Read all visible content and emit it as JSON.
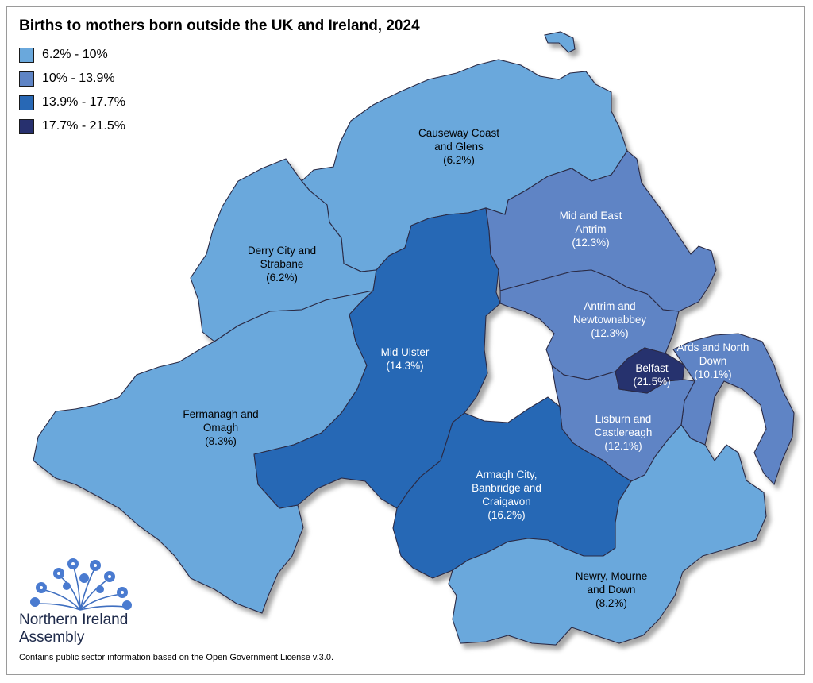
{
  "title": "Births to mothers born outside the UK and Ireland, 2024",
  "legend": [
    {
      "label": "6.2% - 10%",
      "color": "#6aa8dc"
    },
    {
      "label": "10% - 13.9%",
      "color": "#5e84c5"
    },
    {
      "label": "13.9% - 17.7%",
      "color": "#2868b5"
    },
    {
      "label": "17.7% - 21.5%",
      "color": "#27306e"
    }
  ],
  "regions": [
    {
      "id": "causeway",
      "name_lines": [
        "Causeway Coast",
        "and Glens"
      ],
      "value": "(6.2%)",
      "color": "#6aa8dc"
    },
    {
      "id": "derry",
      "name_lines": [
        "Derry City and",
        "Strabane"
      ],
      "value": "(6.2%)",
      "color": "#6aa8dc"
    },
    {
      "id": "fermanagh",
      "name_lines": [
        "Fermanagh and",
        "Omagh"
      ],
      "value": "(8.3%)",
      "color": "#6aa8dc"
    },
    {
      "id": "midulster",
      "name_lines": [
        "Mid Ulster"
      ],
      "value": "(14.3%)",
      "color": "#2868b5"
    },
    {
      "id": "abc",
      "name_lines": [
        "Armagh City,",
        "Banbridge and",
        "Craigavon"
      ],
      "value": "(16.2%)",
      "color": "#2868b5"
    },
    {
      "id": "newry",
      "name_lines": [
        "Newry, Mourne",
        "and Down"
      ],
      "value": "(8.2%)",
      "color": "#6aa8dc"
    },
    {
      "id": "midantrim",
      "name_lines": [
        "Mid and East",
        "Antrim"
      ],
      "value": "(12.3%)",
      "color": "#5e84c5"
    },
    {
      "id": "antrimnewtown",
      "name_lines": [
        "Antrim and",
        "Newtownabbey"
      ],
      "value": "(12.3%)",
      "color": "#5e84c5"
    },
    {
      "id": "belfast",
      "name_lines": [
        "Belfast"
      ],
      "value": "(21.5%)",
      "color": "#27306e"
    },
    {
      "id": "lisburn",
      "name_lines": [
        "Lisburn and",
        "Castlereagh"
      ],
      "value": "(12.1%)",
      "color": "#5e84c5"
    },
    {
      "id": "ards",
      "name_lines": [
        "Ards and North",
        "Down"
      ],
      "value": "(10.1%)",
      "color": "#5e84c5"
    }
  ],
  "logo": {
    "line1": "Northern Ireland",
    "line2": "Assembly",
    "icon": "flax-flower-icon"
  },
  "footnote": "Contains public sector information based on the Open Government License v.3.0."
}
